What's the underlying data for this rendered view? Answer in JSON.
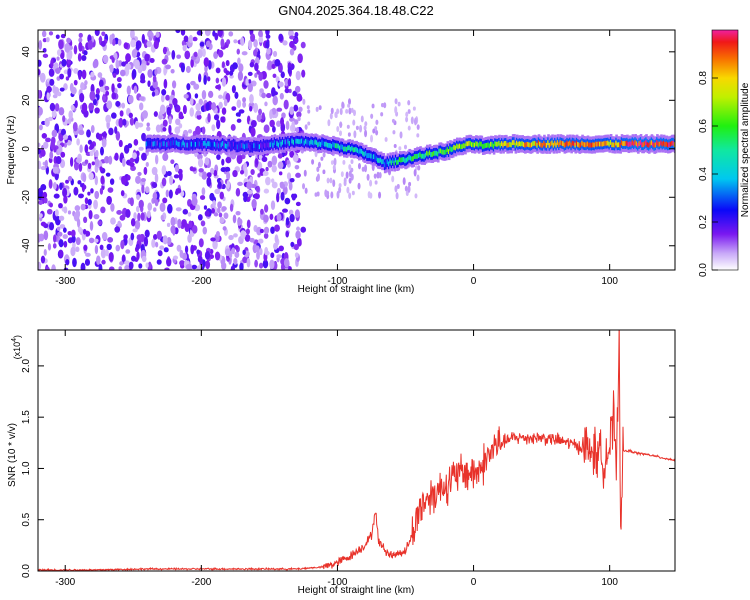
{
  "title": "GN04.2025.364.18.48.C22",
  "chart_data": [
    {
      "type": "heatmap",
      "name": "spectrogram",
      "xlabel": "Height of straight line (km)",
      "ylabel": "Frequency (Hz)",
      "xlim": [
        -320,
        148
      ],
      "ylim": [
        -50,
        49
      ],
      "xticks": [
        -300,
        -200,
        -100,
        0,
        100
      ],
      "yticks": [
        -40,
        -20,
        0,
        20,
        40
      ],
      "colorbar": {
        "label": "Normalized spectral amplitude",
        "range": [
          0.0,
          1.0
        ],
        "ticks": [
          0.0,
          0.2,
          0.4,
          0.6,
          0.8
        ],
        "tick_labels": [
          "0.0",
          "0.2",
          "0.4",
          "0.6",
          "0.8"
        ]
      },
      "noise_region": {
        "x_from": -320,
        "x_to": -125,
        "sparse_to": -40
      },
      "ridge": {
        "x": [
          -240,
          -200,
          -160,
          -130,
          -110,
          -90,
          -75,
          -65,
          -55,
          -40,
          -20,
          -10,
          0,
          10,
          20,
          40,
          60,
          80,
          100,
          120,
          148
        ],
        "freq": [
          2,
          2,
          1,
          3,
          2,
          0,
          -3,
          -6,
          -5,
          -3,
          -1,
          1,
          2,
          1,
          2,
          2,
          2,
          2,
          2,
          2,
          2
        ],
        "amplitude": [
          0.25,
          0.3,
          0.25,
          0.35,
          0.4,
          0.45,
          0.4,
          0.35,
          0.5,
          0.55,
          0.6,
          0.65,
          0.7,
          0.6,
          0.75,
          0.8,
          0.85,
          0.85,
          0.8,
          0.95,
          0.9
        ]
      }
    },
    {
      "type": "line",
      "name": "snr",
      "xlabel": "Height of straight line (km)",
      "ylabel": "SNR (10 * v/v)",
      "multiplier": "(x10",
      "multiplier_exp": "4",
      "multiplier_close": ")",
      "xlim": [
        -320,
        148
      ],
      "ylim": [
        0,
        2.35
      ],
      "xticks": [
        -300,
        -200,
        -100,
        0,
        100
      ],
      "yticks": [
        0.0,
        0.5,
        1.0,
        1.5,
        2.0
      ],
      "ytick_labels": [
        "0.0",
        "0.5",
        "1.0",
        "1.5",
        "2.0"
      ],
      "color": "#e8322a",
      "series": [
        {
          "name": "SNR",
          "x": [
            -320,
            -280,
            -240,
            -200,
            -160,
            -130,
            -110,
            -100,
            -90,
            -80,
            -75,
            -72,
            -70,
            -65,
            -60,
            -50,
            -45,
            -40,
            -35,
            -30,
            -25,
            -20,
            -15,
            -10,
            -5,
            0,
            5,
            10,
            15,
            20,
            30,
            40,
            50,
            60,
            70,
            80,
            90,
            95,
            100,
            103,
            105,
            107,
            108,
            110,
            115,
            120,
            130,
            140,
            148
          ],
          "values": [
            0.01,
            0.01,
            0.02,
            0.02,
            0.02,
            0.02,
            0.04,
            0.08,
            0.15,
            0.25,
            0.35,
            0.6,
            0.3,
            0.2,
            0.15,
            0.2,
            0.35,
            0.6,
            0.7,
            0.75,
            0.8,
            0.85,
            0.9,
            0.95,
            0.97,
            0.95,
            1.0,
            1.1,
            1.2,
            1.25,
            1.3,
            1.3,
            1.3,
            1.28,
            1.25,
            1.2,
            1.15,
            1.1,
            1.2,
            1.5,
            0.9,
            2.3,
            0.5,
            1.17,
            1.17,
            1.15,
            1.13,
            1.1,
            1.08
          ]
        }
      ]
    }
  ]
}
